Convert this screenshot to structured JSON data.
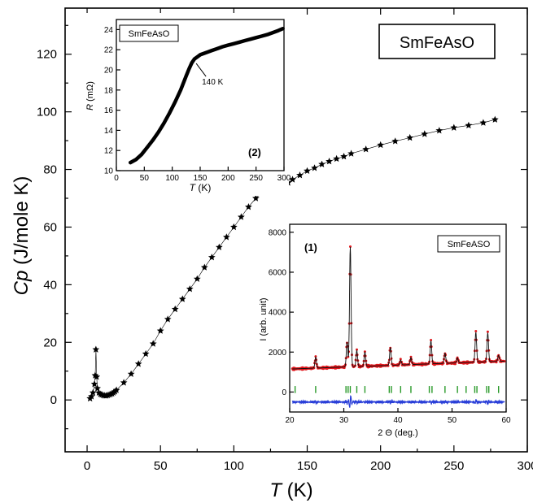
{
  "chart_data": [
    {
      "type": "scatter",
      "title": "",
      "legend_box": "SmFeAsO",
      "xlabel_var": "T",
      "xlabel_unit": " (K)",
      "ylabel_var": "Cp",
      "ylabel_unit": " (J/mole K)",
      "xlim": [
        -15,
        300
      ],
      "ylim": [
        -18,
        136
      ],
      "xticks": [
        0,
        50,
        100,
        150,
        200,
        250,
        300
      ],
      "yticks": [
        0,
        20,
        40,
        60,
        80,
        100,
        120
      ],
      "series": [
        {
          "x": [
            2,
            3,
            4,
            5,
            5.5,
            6,
            6.5,
            7,
            8,
            9,
            10,
            11,
            12,
            13,
            14,
            15,
            16,
            17,
            18,
            19,
            20,
            25,
            30,
            35,
            40,
            45,
            50,
            55,
            60,
            65,
            70,
            75,
            80,
            85,
            90,
            95,
            100,
            105,
            110,
            115,
            120,
            125,
            128,
            131,
            133,
            135,
            137,
            140,
            145,
            150,
            155,
            160,
            165,
            170,
            175,
            180,
            190,
            200,
            210,
            220,
            230,
            240,
            250,
            260,
            270,
            278
          ],
          "y": [
            0.5,
            1.2,
            2.5,
            5.5,
            8.5,
            17.5,
            8,
            4,
            2.5,
            2,
            1.8,
            1.6,
            1.5,
            1.5,
            1.6,
            1.8,
            2,
            2.2,
            2.5,
            2.9,
            3.4,
            6,
            9,
            12.5,
            16,
            19.5,
            24,
            28,
            31.5,
            35,
            38.5,
            42,
            46,
            49.5,
            53,
            56.5,
            60,
            63.5,
            67,
            70,
            72.5,
            74.5,
            75.5,
            76,
            75.8,
            75.5,
            75.4,
            76.5,
            78,
            79.5,
            80.5,
            81.8,
            82.8,
            83.7,
            84.5,
            85.5,
            87,
            88.5,
            89.8,
            91,
            92.3,
            93.5,
            94.5,
            95.3,
            96.2,
            97.3
          ]
        }
      ]
    },
    {
      "type": "line",
      "title": "",
      "legend_box": "SmFeAsO",
      "panel_label": "(2)",
      "annotation": "140 K",
      "annotation_x": 140,
      "annotation_y": 20.8,
      "xlabel_var": "T",
      "xlabel_unit": " (K)",
      "ylabel_var": "R",
      "ylabel_unit": " (mΩ)",
      "xlim": [
        0,
        300
      ],
      "ylim": [
        10,
        25
      ],
      "xticks": [
        0,
        50,
        100,
        150,
        200,
        250,
        300
      ],
      "yticks": [
        10,
        12,
        14,
        16,
        18,
        20,
        22,
        24
      ],
      "series": [
        {
          "x": [
            25,
            35,
            45,
            55,
            65,
            75,
            85,
            95,
            105,
            115,
            125,
            130,
            135,
            140,
            145,
            150,
            160,
            170,
            180,
            190,
            200,
            210,
            220,
            230,
            240,
            250,
            260,
            270,
            280,
            290,
            298
          ],
          "y": [
            10.8,
            11.1,
            11.6,
            12.3,
            13.0,
            13.8,
            14.7,
            15.7,
            16.8,
            18.0,
            19.4,
            20.1,
            20.7,
            21.1,
            21.3,
            21.5,
            21.7,
            21.9,
            22.1,
            22.3,
            22.45,
            22.6,
            22.75,
            22.9,
            23.05,
            23.2,
            23.35,
            23.5,
            23.7,
            23.9,
            24.1
          ]
        }
      ]
    },
    {
      "type": "line",
      "title": "",
      "legend_box": "SmFeASO",
      "panel_label": "(1)",
      "xlabel": "2 Θ (deg.)",
      "ylabel": "I (arb. unit)",
      "xlim": [
        20,
        60
      ],
      "ylim": [
        -1000,
        8400
      ],
      "xticks": [
        20,
        30,
        40,
        50,
        60
      ],
      "yticks": [
        0,
        2000,
        4000,
        6000,
        8000
      ],
      "colors": {
        "observed": "#e0161b",
        "calculated": "#101010",
        "difference": "#2a3fd8",
        "bragg": "#2a9a2a"
      },
      "series": [
        {
          "name": "",
          "peaks": [
            [
              24.8,
              550
            ],
            [
              30.6,
              1250
            ],
            [
              31.2,
              6000
            ],
            [
              32.4,
              800
            ],
            [
              33.9,
              700
            ],
            [
              38.6,
              900
            ],
            [
              40.5,
              250
            ],
            [
              42.4,
              350
            ],
            [
              46.1,
              1150
            ],
            [
              48.7,
              500
            ],
            [
              51.0,
              250
            ],
            [
              54.4,
              1500
            ],
            [
              56.6,
              1450
            ],
            [
              58.6,
              300
            ]
          ],
          "baseline": [
            1150,
            1550
          ],
          "bragg_positions": [
            21.0,
            24.8,
            30.4,
            30.8,
            31.2,
            32.4,
            33.9,
            38.4,
            38.8,
            40.5,
            42.4,
            45.8,
            46.3,
            48.7,
            51.0,
            52.6,
            54.2,
            54.6,
            56.4,
            56.8,
            58.6
          ]
        }
      ]
    }
  ]
}
